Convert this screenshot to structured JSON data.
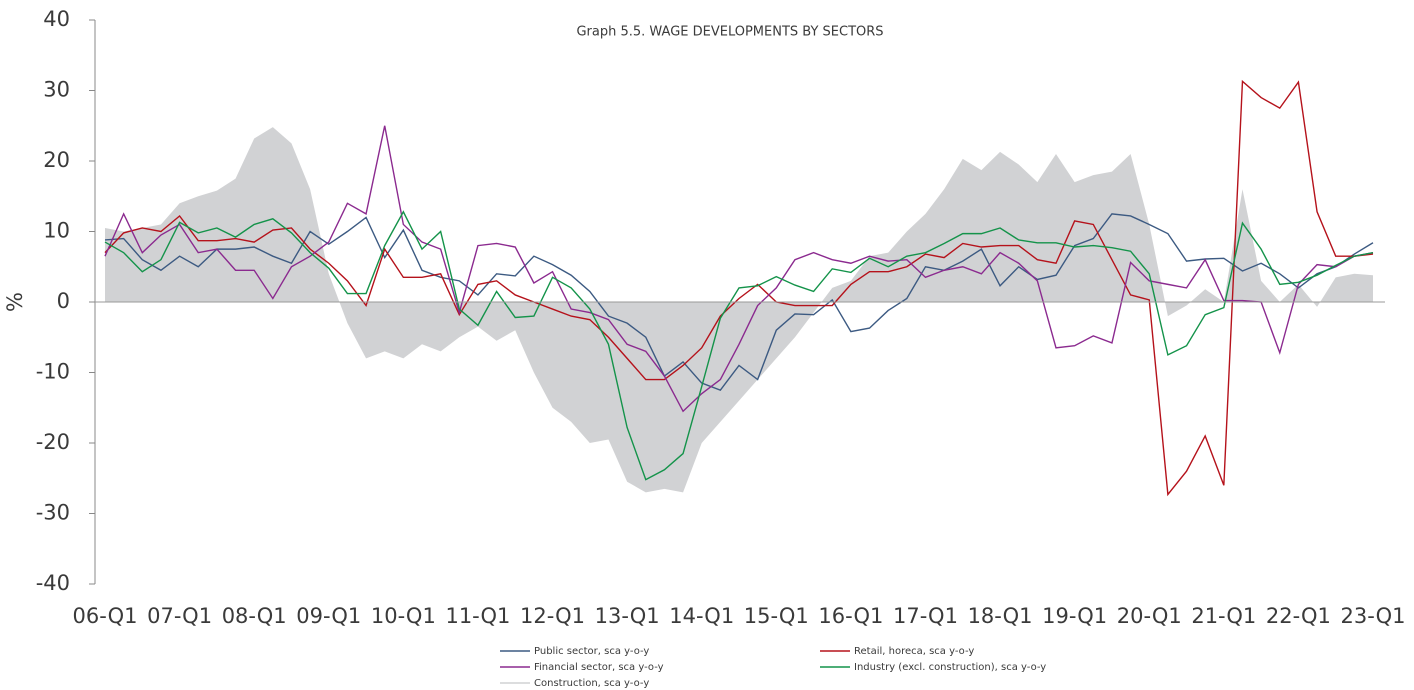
{
  "chart_data": {
    "type": "line",
    "title": "Graph 5.5. WAGE DEVELOPMENTS BY SECTORS",
    "y_label": "%",
    "categories": [
      "06-Q1",
      null,
      null,
      null,
      "07-Q1",
      null,
      null,
      null,
      "08-Q1",
      null,
      null,
      null,
      "09-Q1",
      null,
      null,
      null,
      "10-Q1",
      null,
      null,
      null,
      "11-Q1",
      null,
      null,
      null,
      "12-Q1",
      null,
      null,
      null,
      "13-Q1",
      null,
      null,
      null,
      "14-Q1",
      null,
      null,
      null,
      "15-Q1",
      null,
      null,
      null,
      "16-Q1",
      null,
      null,
      null,
      "17-Q1",
      null,
      null,
      null,
      "18-Q1",
      null,
      null,
      null,
      "19-Q1",
      null,
      null,
      null,
      "20-Q1",
      null,
      null,
      null,
      "21-Q1",
      null,
      null,
      null,
      "22-Q1",
      null,
      null,
      null,
      "23-Q1"
    ],
    "ylim": [
      -40,
      40
    ],
    "yticks": [
      -40,
      -30,
      -20,
      -10,
      0,
      10,
      20,
      30,
      40
    ],
    "series": [
      {
        "name": "Construction, sca y-o-y",
        "color": "#d1d2d4",
        "area": true,
        "values": [
          10.5,
          10,
          10.5,
          11,
          14,
          15,
          15.8,
          17.5,
          23.2,
          24.8,
          22.5,
          16,
          4,
          -3,
          -8,
          -7,
          -8,
          -6,
          -7,
          -5,
          -3.5,
          -5.5,
          -4,
          -10,
          -15,
          -17,
          -20,
          -19.5,
          -25.5,
          -27,
          -26.5,
          -27,
          -20,
          -17,
          -14,
          -11,
          -8,
          -5,
          -1.5,
          2,
          3,
          6.5,
          7,
          10,
          12.5,
          16,
          20.3,
          18.7,
          21.3,
          19.5,
          17,
          21,
          17,
          18,
          18.5,
          21,
          11,
          -2,
          -0.5,
          1.8,
          0,
          16,
          3,
          0,
          2.5,
          -0.7,
          3.5,
          4,
          3.8
        ]
      },
      {
        "name": "Public sector, sca y-o-y",
        "color": "#3c5a82",
        "values": [
          8.8,
          9,
          6,
          4.5,
          6.5,
          5,
          7.5,
          7.5,
          7.8,
          6.5,
          5.5,
          10,
          8.2,
          10,
          12,
          6.3,
          10.2,
          4.5,
          3.5,
          3,
          1,
          4,
          3.7,
          6.5,
          5.3,
          3.8,
          1.5,
          -2,
          -3,
          -5,
          -10.5,
          -8.5,
          -11.5,
          -12.5,
          -9,
          -11,
          -4,
          -1.7,
          -1.8,
          0.3,
          -4.2,
          -3.7,
          -1.2,
          0.5,
          5,
          4.5,
          5.8,
          7.5,
          2.3,
          5,
          3.2,
          3.8,
          8,
          9,
          12.5,
          12.2,
          11,
          9.7,
          5.8,
          6.1,
          6.2,
          4.4,
          5.5,
          4,
          2,
          4,
          5,
          6.8,
          8.4
        ]
      },
      {
        "name": "Retail, horeca, sca y-o-y",
        "color": "#b5121b",
        "values": [
          7,
          9.8,
          10.5,
          10,
          12.2,
          8.7,
          8.7,
          9,
          8.5,
          10.2,
          10.5,
          7.5,
          5.5,
          3,
          -0.5,
          7.5,
          3.5,
          3.5,
          4,
          -1.8,
          2.5,
          3,
          1,
          0,
          -1,
          -2,
          -2.5,
          -5,
          -8,
          -11,
          -11,
          -9,
          -6.5,
          -2,
          0.5,
          2.5,
          0,
          -0.5,
          -0.5,
          -0.5,
          2.5,
          4.3,
          4.3,
          5,
          6.8,
          6.3,
          8.3,
          7.8,
          8,
          8,
          6,
          5.5,
          11.5,
          11,
          6,
          1,
          0.3,
          -27.3,
          -24,
          -19,
          -26,
          31.3,
          29,
          27.5,
          31.2,
          12.8,
          6.5,
          6.5,
          6.8
        ]
      },
      {
        "name": "Financial sector, sca y-o-y",
        "color": "#8b2a8f",
        "values": [
          6.5,
          12.5,
          7,
          9.5,
          11,
          7,
          7.5,
          4.5,
          4.5,
          0.5,
          5,
          6.5,
          8.5,
          14,
          12.5,
          25,
          11,
          8.5,
          7.5,
          -1.5,
          8,
          8.3,
          7.8,
          2.7,
          4.3,
          -1,
          -1.5,
          -2.5,
          -6,
          -7,
          -10.5,
          -15.5,
          -13,
          -11,
          -6,
          -0.5,
          2,
          6,
          7,
          6,
          5.5,
          6.5,
          5.8,
          6,
          3.5,
          4.5,
          5,
          4,
          7,
          5.5,
          3,
          -6.5,
          -6.2,
          -4.8,
          -5.8,
          5.6,
          3,
          2.5,
          2,
          6,
          0.2,
          0.2,
          0,
          -7.2,
          2.5,
          5.3,
          5,
          6.5,
          7
        ]
      },
      {
        "name": "Industry (excl. construction), sca y-o-y",
        "color": "#14934a",
        "values": [
          8.5,
          7,
          4.3,
          6,
          11.3,
          9.8,
          10.5,
          9.2,
          11,
          11.8,
          9.8,
          7,
          4.8,
          1.2,
          1.2,
          8,
          12.8,
          7.5,
          10,
          -1,
          -3.3,
          1.5,
          -2.2,
          -2,
          3.5,
          2,
          -1,
          -6,
          -17.8,
          -25.2,
          -23.8,
          -21.5,
          -12,
          -2.3,
          2,
          2.3,
          3.6,
          2.4,
          1.5,
          4.7,
          4.2,
          6.2,
          5,
          6.5,
          7,
          8.3,
          9.7,
          9.7,
          10.5,
          8.8,
          8.4,
          8.4,
          7.8,
          8,
          7.7,
          7.2,
          4,
          -7.5,
          -6.2,
          -1.8,
          -0.8,
          11.2,
          7.5,
          2.5,
          2.8,
          3.8,
          5.2,
          6.5,
          7
        ]
      }
    ]
  }
}
